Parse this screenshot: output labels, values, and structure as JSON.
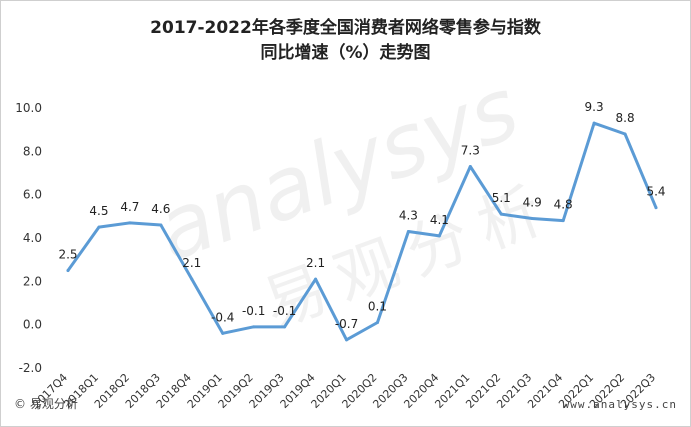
{
  "chart_data": {
    "type": "line",
    "title": "2017-2022年各季度全国消费者网络零售参与指数",
    "subtitle": "同比增速（%）走势图",
    "categories": [
      "2017Q4",
      "2018Q1",
      "2018Q2",
      "2018Q3",
      "2018Q4",
      "2019Q1",
      "2019Q2",
      "2019Q3",
      "2019Q4",
      "2020Q1",
      "2020Q2",
      "2020Q3",
      "2020Q4",
      "2021Q1",
      "2021Q2",
      "2021Q3",
      "2021Q4",
      "2022Q1",
      "2022Q2",
      "2022Q3"
    ],
    "series": [
      {
        "values": [
          2.5,
          4.5,
          4.7,
          4.6,
          2.1,
          -0.4,
          -0.1,
          -0.1,
          2.1,
          -0.7,
          0.1,
          4.3,
          4.1,
          7.3,
          5.1,
          4.9,
          4.8,
          9.3,
          8.8,
          5.4
        ]
      }
    ],
    "value_labels": [
      "2.5",
      "4.5",
      "4.7",
      "4.6",
      "2.1",
      "-0.4",
      "-0.1",
      "-0.1",
      "2.1",
      "-0.7",
      "0.1",
      "4.3",
      "4.1",
      "7.3",
      "5.1",
      "4.9",
      "4.8",
      "9.3",
      "8.8",
      "5.4"
    ],
    "y_ticks": [
      10.0,
      8.0,
      6.0,
      4.0,
      2.0,
      0.0,
      -2.0
    ],
    "y_tick_labels": [
      "10.0",
      "8.0",
      "6.0",
      "4.0",
      "2.0",
      "0.0",
      "-2.0"
    ],
    "ylim": [
      -2.0,
      10.0
    ],
    "xlabel": "",
    "ylabel": "",
    "grid": false,
    "legend": "none",
    "line_color": "#5b9bd5"
  },
  "watermark": {
    "text": "analysys",
    "text_cn": "易观分析"
  },
  "footer": {
    "copyright_symbol": "©",
    "brand": "易观分析",
    "url": "www.analysys.cn"
  }
}
